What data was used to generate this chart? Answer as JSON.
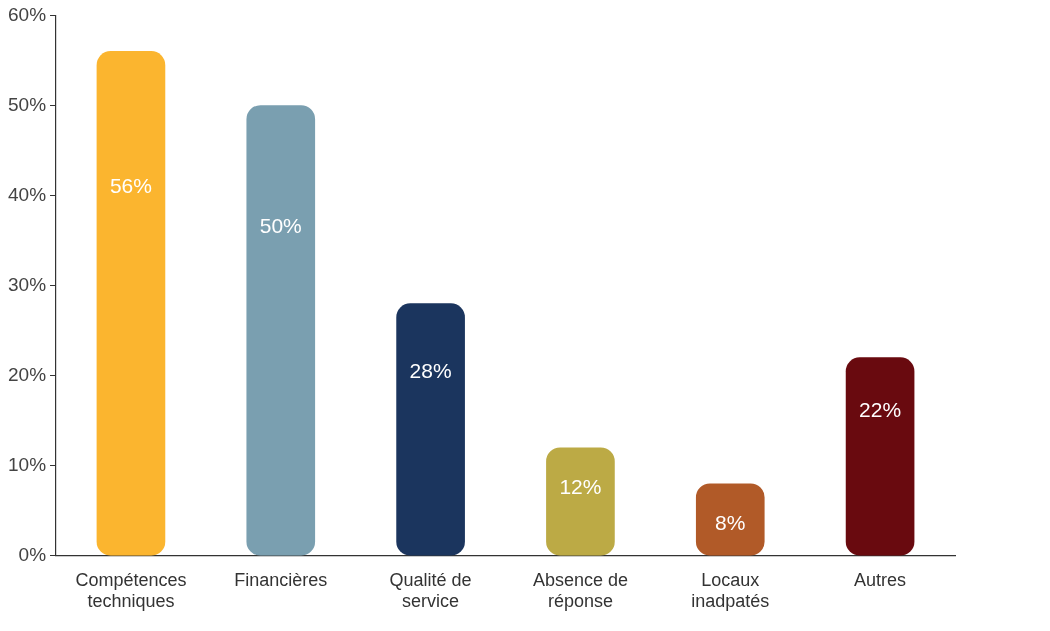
{
  "chart_data": {
    "type": "bar",
    "categories": [
      "Compétences techniques",
      "Financières",
      "Qualité de service",
      "Absence de réponse",
      "Locaux inadpatés",
      "Autres"
    ],
    "values": [
      56,
      50,
      28,
      12,
      8,
      22
    ],
    "colors": [
      "#fbb52f",
      "#7a9fb0",
      "#1b355e",
      "#bcaa45",
      "#b15a28",
      "#690a0f"
    ],
    "ylim": [
      0,
      60
    ],
    "yticks": [
      {
        "value": 0,
        "label": "0%"
      },
      {
        "value": 10,
        "label": "10%"
      },
      {
        "value": 20,
        "label": "20%"
      },
      {
        "value": 30,
        "label": "30%"
      },
      {
        "value": 40,
        "label": "40%"
      },
      {
        "value": 50,
        "label": "50%"
      },
      {
        "value": 60,
        "label": "60%"
      }
    ],
    "value_labels": [
      "56%",
      "50%",
      "28%",
      "12%",
      "8%",
      "22%"
    ],
    "grid": false,
    "legend": false
  }
}
